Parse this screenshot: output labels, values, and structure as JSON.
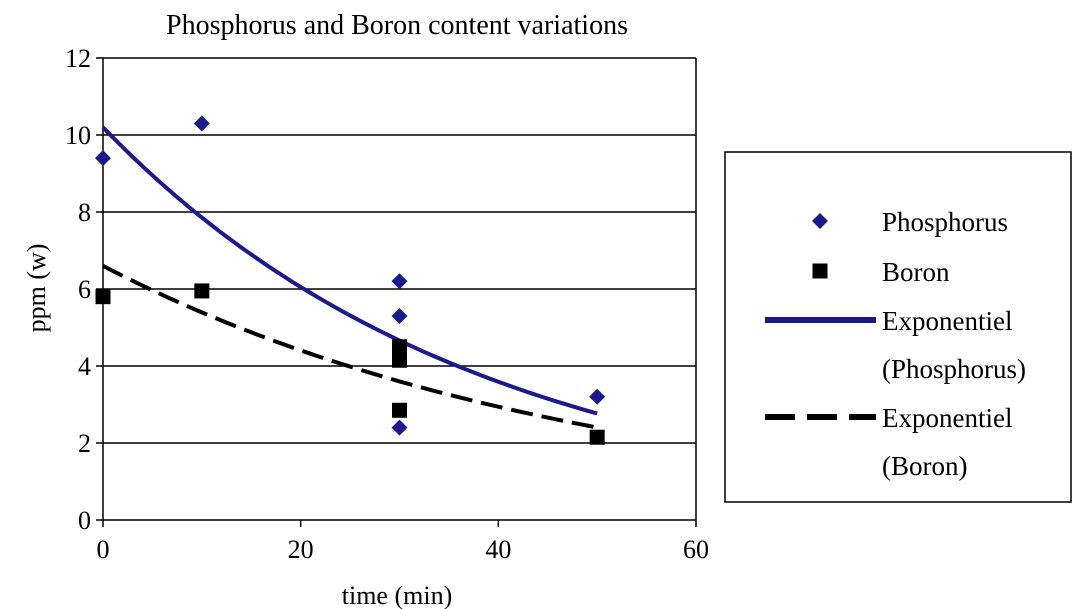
{
  "chart_data": {
    "type": "scatter",
    "title": "Phosphorus and  Boron content variations",
    "xlabel": "time (min)",
    "ylabel": "ppm (w)",
    "xlim": [
      0,
      60
    ],
    "ylim": [
      0,
      12
    ],
    "xticks": [
      0,
      20,
      40,
      60
    ],
    "yticks": [
      0,
      2,
      4,
      6,
      8,
      10,
      12
    ],
    "grid": "horizontal",
    "legend_position": "right",
    "series": [
      {
        "name": "Phosphorus",
        "kind": "points",
        "marker": "diamond",
        "color": "#1a1a8c",
        "x": [
          0,
          10,
          30,
          30,
          30,
          50
        ],
        "y": [
          9.4,
          10.3,
          6.2,
          5.3,
          2.4,
          3.2
        ]
      },
      {
        "name": "Boron",
        "kind": "points",
        "marker": "square",
        "color": "#000000",
        "x": [
          0,
          10,
          30,
          30,
          30,
          30,
          50
        ],
        "y": [
          5.8,
          5.95,
          4.5,
          4.3,
          4.15,
          2.85,
          2.15
        ]
      },
      {
        "name_lines": [
          "Exponentiel",
          "(Phosphorus)"
        ],
        "kind": "trendline",
        "style": "solid",
        "color": "#1a1a8c",
        "fit": "exponential",
        "a": 10.2,
        "b": -0.0261
      },
      {
        "name_lines": [
          "Exponentiel",
          "(Boron)"
        ],
        "kind": "trendline",
        "style": "dashed",
        "color": "#000000",
        "fit": "exponential",
        "a": 6.6,
        "b": -0.0202
      }
    ]
  }
}
